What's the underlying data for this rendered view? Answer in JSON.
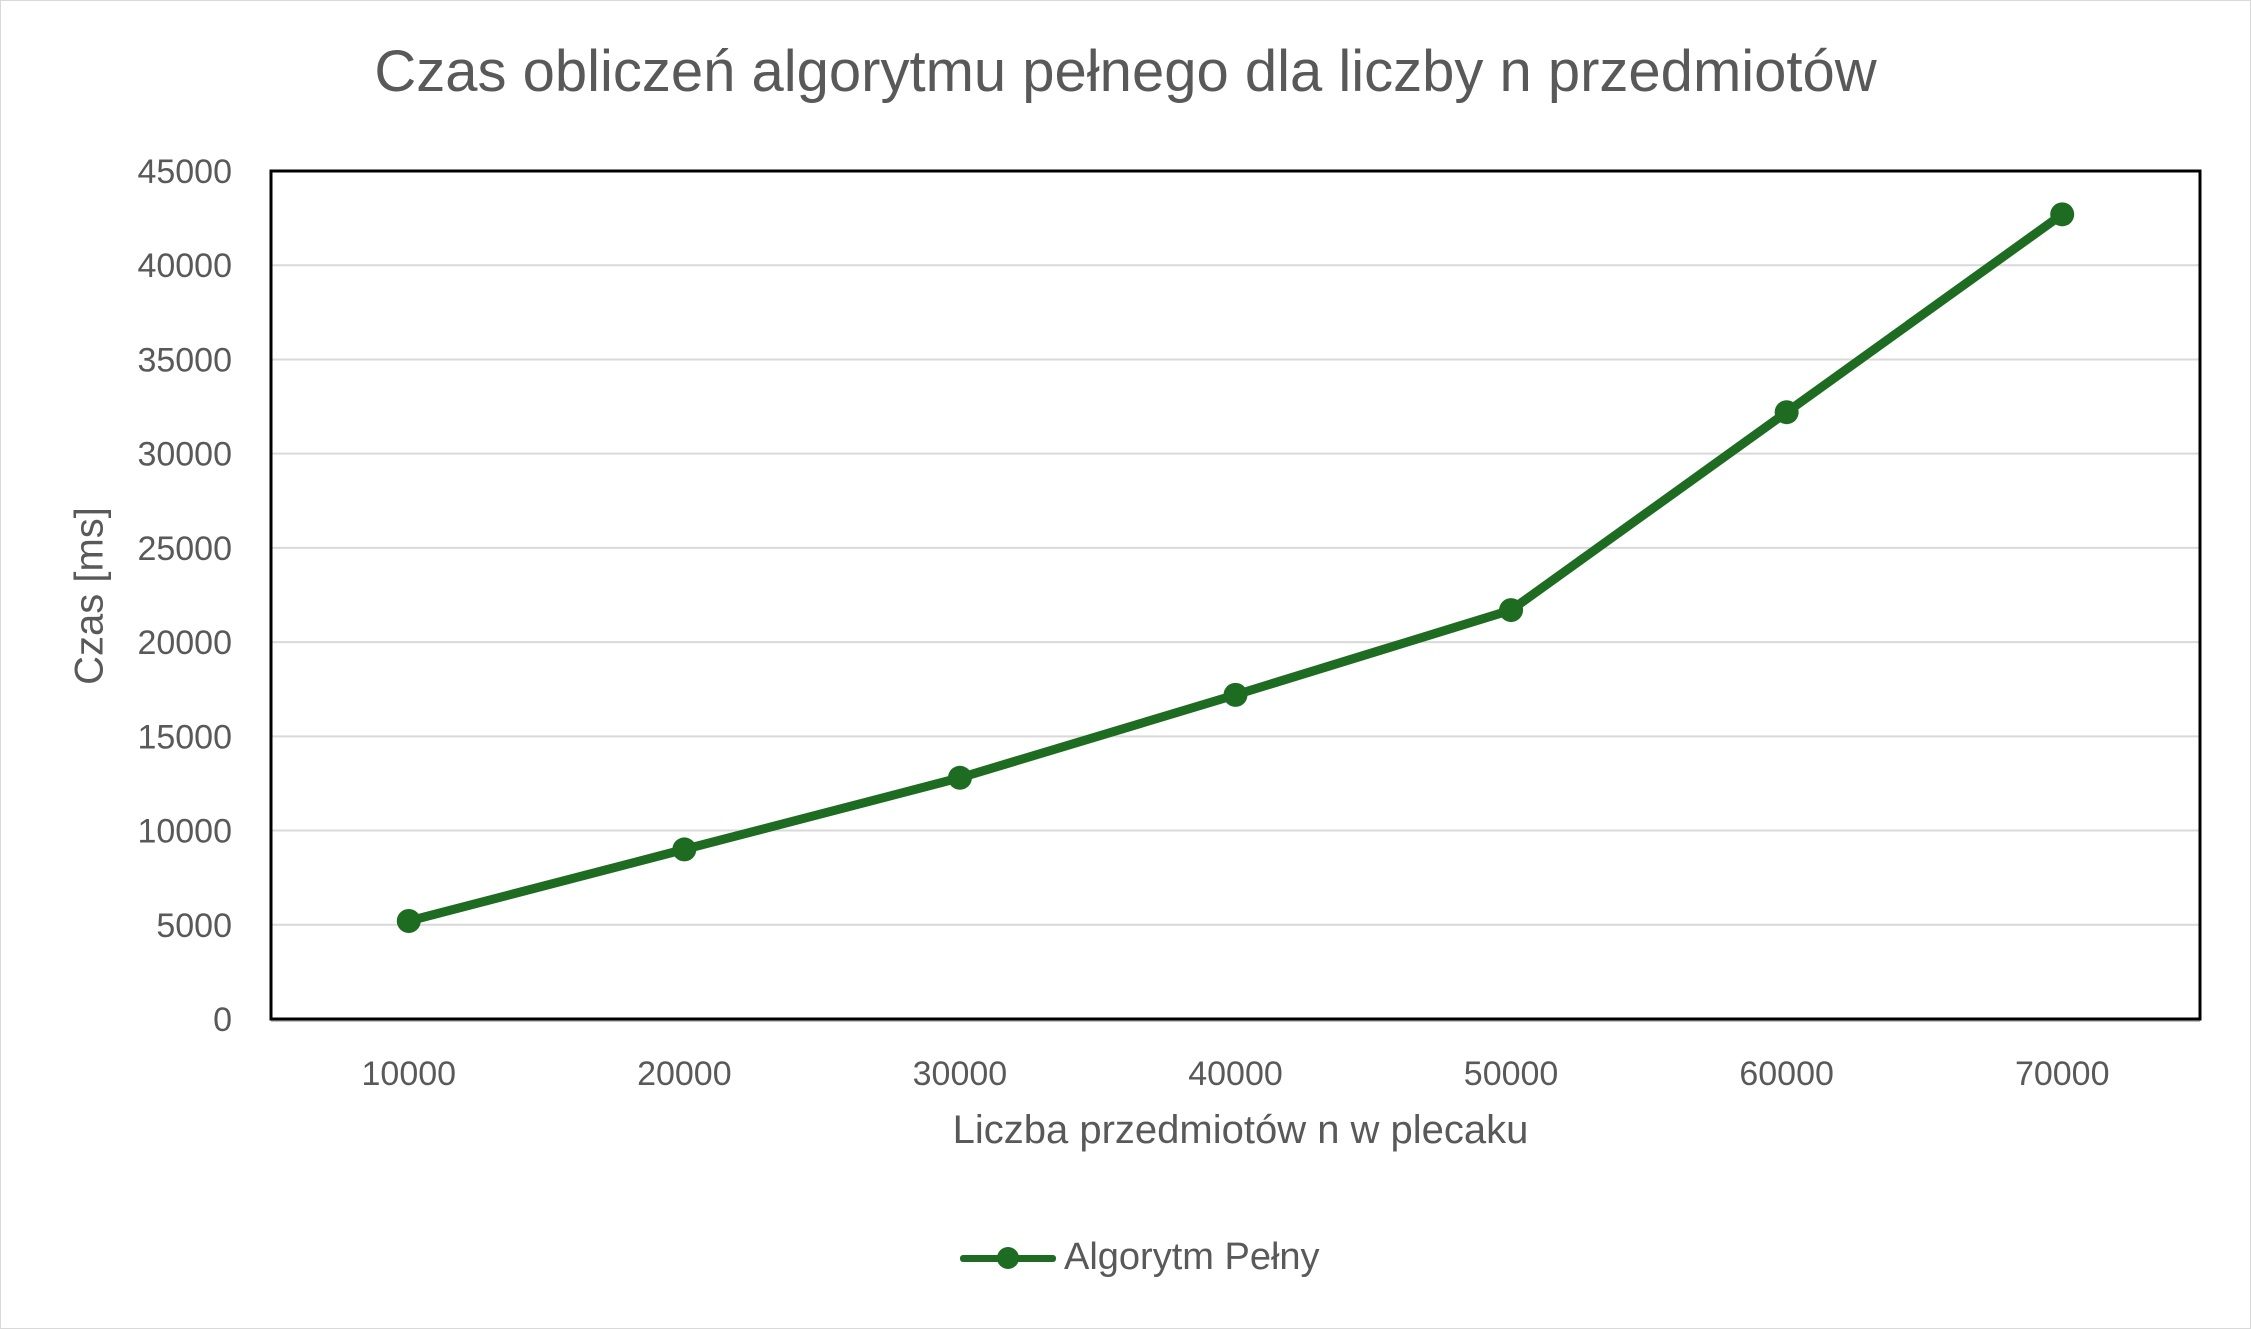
{
  "chart_data": {
    "type": "line",
    "title": "Czas obliczeń algorytmu pełnego dla liczby n przedmiotów",
    "xlabel": "Liczba przedmiotów n w plecaku",
    "ylabel": "Czas [ms]",
    "categories": [
      "10000",
      "20000",
      "30000",
      "40000",
      "50000",
      "60000",
      "70000"
    ],
    "series": [
      {
        "name": "Algorytm Pełny",
        "color": "#1e6b22",
        "values": [
          5200,
          9000,
          12800,
          17200,
          21700,
          32200,
          42700
        ]
      }
    ],
    "ylim": [
      0,
      45000
    ],
    "yticks": [
      "0",
      "5000",
      "10000",
      "15000",
      "20000",
      "25000",
      "30000",
      "35000",
      "40000",
      "45000"
    ],
    "grid": true,
    "legend": "bottom",
    "marker": "circle"
  }
}
